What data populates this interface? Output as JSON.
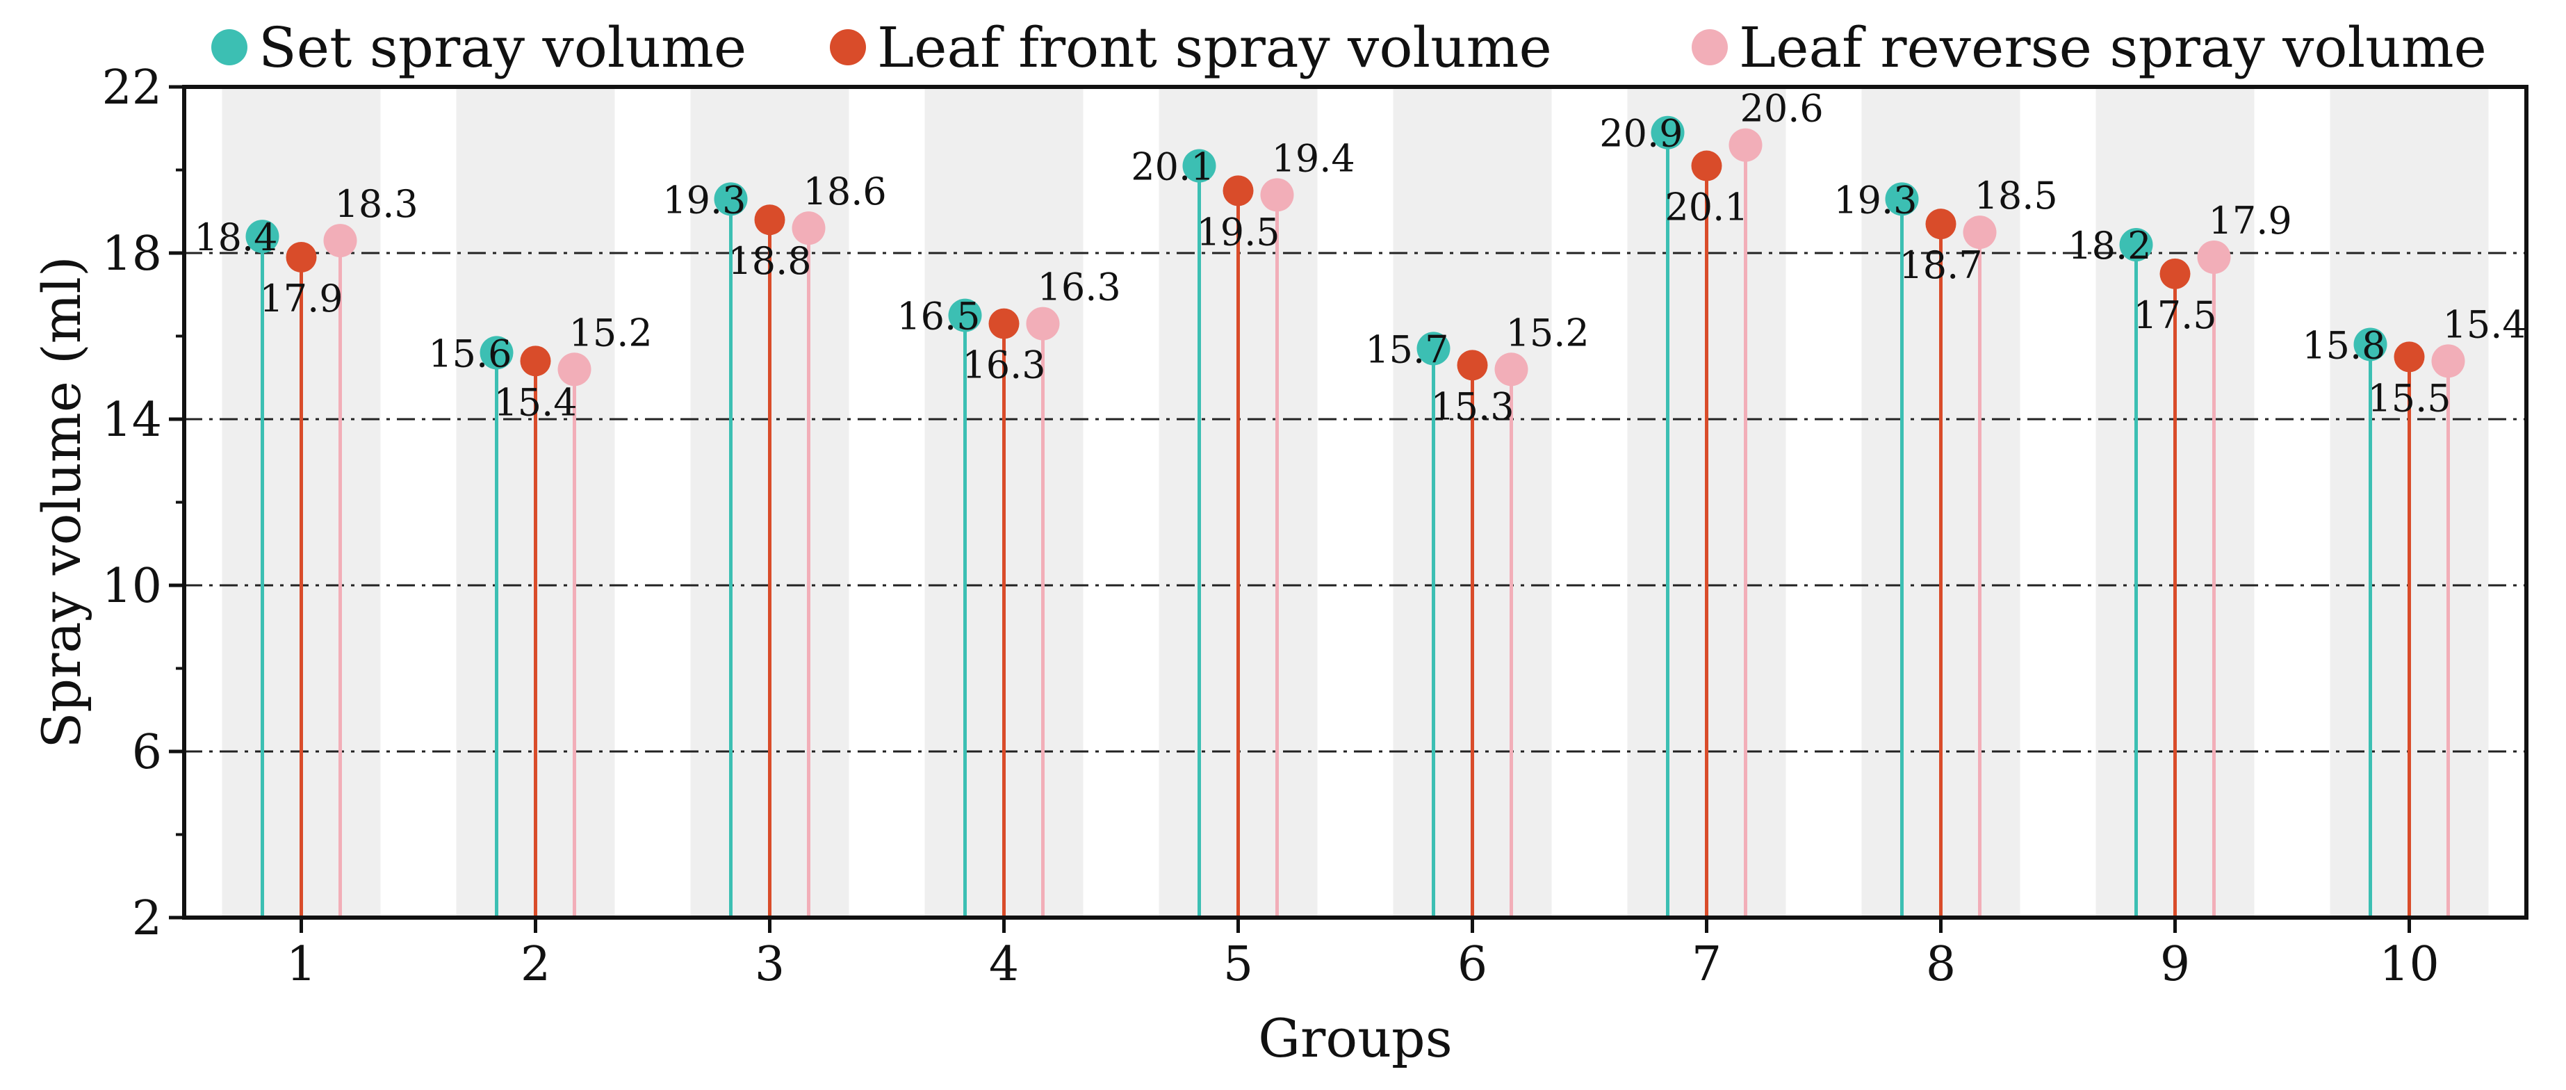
{
  "chart_data": {
    "type": "stem",
    "xlabel": "Groups",
    "ylabel": "Spray volume (ml)",
    "ylim": [
      2,
      22
    ],
    "yticks": [
      2,
      6,
      10,
      14,
      18,
      22
    ],
    "categories": [
      "1",
      "2",
      "3",
      "4",
      "5",
      "6",
      "7",
      "8",
      "9",
      "10"
    ],
    "grid": "horizontal dash-dot at 6, 10, 14, 18",
    "legend_position": "top",
    "series": [
      {
        "name": "Set spray volume",
        "color": "#3cbfb3",
        "values": [
          18.4,
          15.6,
          19.3,
          16.5,
          20.1,
          15.7,
          20.9,
          19.3,
          18.2,
          15.8
        ]
      },
      {
        "name": "Leaf front spray volume",
        "color": "#d94c2a",
        "values": [
          17.9,
          15.4,
          18.8,
          16.3,
          19.5,
          15.3,
          20.1,
          18.7,
          17.5,
          15.5
        ]
      },
      {
        "name": "Leaf reverse spray volume",
        "color": "#f2aeb8",
        "values": [
          18.3,
          15.2,
          18.6,
          16.3,
          19.4,
          15.2,
          20.6,
          18.5,
          17.9,
          15.4
        ]
      }
    ]
  }
}
